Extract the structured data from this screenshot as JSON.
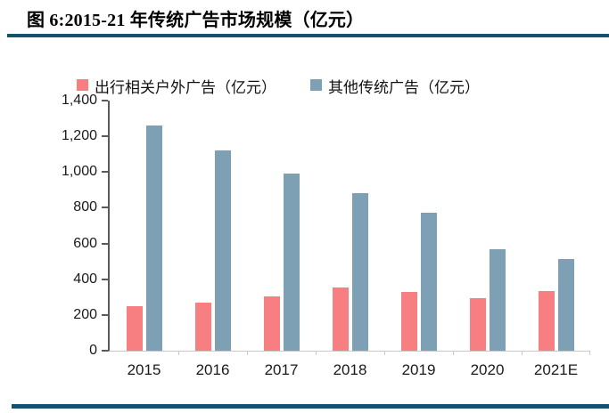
{
  "figure": {
    "title": "图 6:2015-21 年传统广告市场规模（亿元）"
  },
  "colors": {
    "divider_blue": "#14516C",
    "axis_line": "#595959",
    "baseline_gray": "#c9c9c9",
    "series_red": "#F87F81",
    "series_blue": "#7EA0B5",
    "text": "#1a1a1a"
  },
  "chart_data": {
    "type": "bar",
    "title": "2015-21 年传统广告市场规模（亿元）",
    "categories": [
      "2015",
      "2016",
      "2017",
      "2018",
      "2019",
      "2020",
      "2021E"
    ],
    "series": [
      {
        "name": "出行相关户外广告（亿元）",
        "color": "#F87F81",
        "values": [
          250,
          270,
          305,
          355,
          330,
          295,
          335
        ]
      },
      {
        "name": "其他传统广告（亿元）",
        "color": "#7EA0B5",
        "values": [
          1260,
          1120,
          990,
          880,
          770,
          570,
          515
        ]
      }
    ],
    "xlabel": "",
    "ylabel": "",
    "ylim": [
      0,
      1400
    ],
    "y_ticks": [
      0,
      200,
      400,
      600,
      800,
      1000,
      1200,
      1400
    ],
    "y_tick_labels": [
      "0",
      "200",
      "400",
      "600",
      "800",
      "1,000",
      "1,200",
      "1,400"
    ],
    "grid": false,
    "legend_position": "top"
  }
}
